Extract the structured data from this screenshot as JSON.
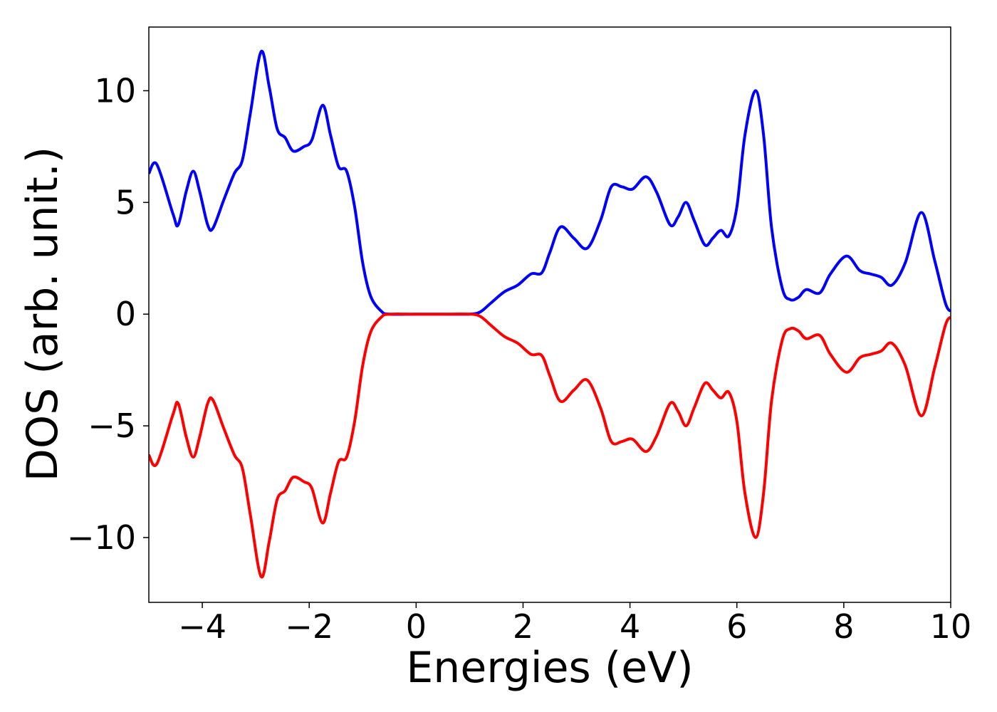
{
  "chart_data": {
    "type": "line",
    "x_label": "Energies (eV)",
    "y_label": "DOS (arb. unit.)",
    "x": [
      -5,
      -4.85,
      -4.55,
      -4.45,
      -4.3,
      -4.17,
      -4.05,
      -3.9,
      -3.8,
      -3.6,
      -3.4,
      -3.25,
      -3.1,
      -2.9,
      -2.75,
      -2.6,
      -2.45,
      -2.3,
      -2.1,
      -1.95,
      -1.75,
      -1.6,
      -1.45,
      -1.3,
      -1.15,
      -1.0,
      -0.85,
      -0.65,
      -0.5,
      0,
      0.5,
      1.0,
      1.2,
      1.4,
      1.65,
      1.9,
      2.15,
      2.35,
      2.5,
      2.7,
      2.95,
      3.2,
      3.45,
      3.65,
      3.85,
      4.05,
      4.3,
      4.5,
      4.75,
      4.9,
      5.05,
      5.2,
      5.4,
      5.55,
      5.7,
      5.85,
      6.0,
      6.15,
      6.35,
      6.5,
      6.65,
      6.85,
      7.0,
      7.15,
      7.3,
      7.55,
      7.75,
      8.05,
      8.3,
      8.5,
      8.7,
      8.9,
      9.15,
      9.45,
      9.7,
      9.9,
      10
    ],
    "series": [
      {
        "color": "#0000ff",
        "values": [
          6.3,
          6.7,
          4.5,
          4.0,
          5.5,
          6.4,
          5.5,
          4.0,
          3.85,
          5.1,
          6.3,
          6.9,
          9.0,
          11.75,
          10.2,
          8.3,
          7.9,
          7.3,
          7.5,
          7.8,
          9.35,
          8.0,
          6.6,
          6.4,
          4.8,
          2.3,
          0.8,
          0.13,
          0,
          0,
          0,
          0,
          0.1,
          0.5,
          1.0,
          1.3,
          1.8,
          1.85,
          2.75,
          3.9,
          3.4,
          2.95,
          4.2,
          5.7,
          5.7,
          5.6,
          6.15,
          5.45,
          4.0,
          4.35,
          5.0,
          4.2,
          3.1,
          3.4,
          3.75,
          3.5,
          4.8,
          8.0,
          10.0,
          8.0,
          3.85,
          1.15,
          0.65,
          0.75,
          1.1,
          0.95,
          1.8,
          2.6,
          1.95,
          1.8,
          1.65,
          1.3,
          2.3,
          4.55,
          2.4,
          0.5,
          0.12
        ]
      },
      {
        "color": "#ff0000",
        "values": [
          -6.3,
          -6.7,
          -4.5,
          -4.0,
          -5.5,
          -6.4,
          -5.5,
          -4.0,
          -3.85,
          -5.1,
          -6.3,
          -6.9,
          -9.0,
          -11.75,
          -10.2,
          -8.3,
          -7.9,
          -7.3,
          -7.5,
          -7.8,
          -9.35,
          -8.0,
          -6.6,
          -6.4,
          -4.8,
          -2.3,
          -0.8,
          -0.13,
          0,
          0,
          0,
          0,
          -0.1,
          -0.5,
          -1.0,
          -1.3,
          -1.8,
          -1.85,
          -2.75,
          -3.9,
          -3.4,
          -2.95,
          -4.2,
          -5.7,
          -5.7,
          -5.6,
          -6.15,
          -5.45,
          -4.0,
          -4.35,
          -5.0,
          -4.2,
          -3.1,
          -3.4,
          -3.75,
          -3.5,
          -4.8,
          -8.0,
          -10.0,
          -8.0,
          -3.85,
          -1.15,
          -0.65,
          -0.75,
          -1.1,
          -0.95,
          -1.8,
          -2.6,
          -1.95,
          -1.8,
          -1.65,
          -1.3,
          -2.3,
          -4.55,
          -2.4,
          -0.5,
          -0.12
        ]
      }
    ],
    "xlim": [
      -5,
      10
    ],
    "xticks": [
      {
        "value": -4,
        "label": "−4"
      },
      {
        "value": -2,
        "label": "−2"
      },
      0,
      2,
      4,
      6,
      8,
      10
    ],
    "ylim": [
      -12.9,
      12.85
    ],
    "yticks": [
      {
        "value": -10,
        "label": "−10"
      },
      {
        "value": -5,
        "label": "−5"
      },
      0,
      5,
      10
    ],
    "grid": false
  }
}
